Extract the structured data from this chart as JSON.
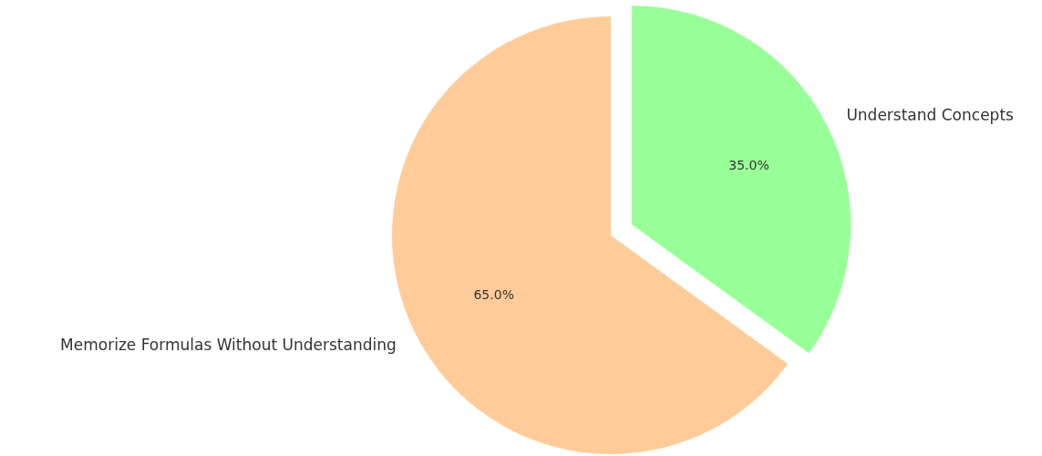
{
  "chart_data": {
    "type": "pie",
    "categories": [
      "Understand Concepts",
      "Memorize Formulas Without Understanding"
    ],
    "values": [
      35,
      65
    ],
    "colors": [
      "#98ff98",
      "#ffcc99"
    ],
    "value_labels": [
      "35.0%",
      "65.0%"
    ]
  }
}
